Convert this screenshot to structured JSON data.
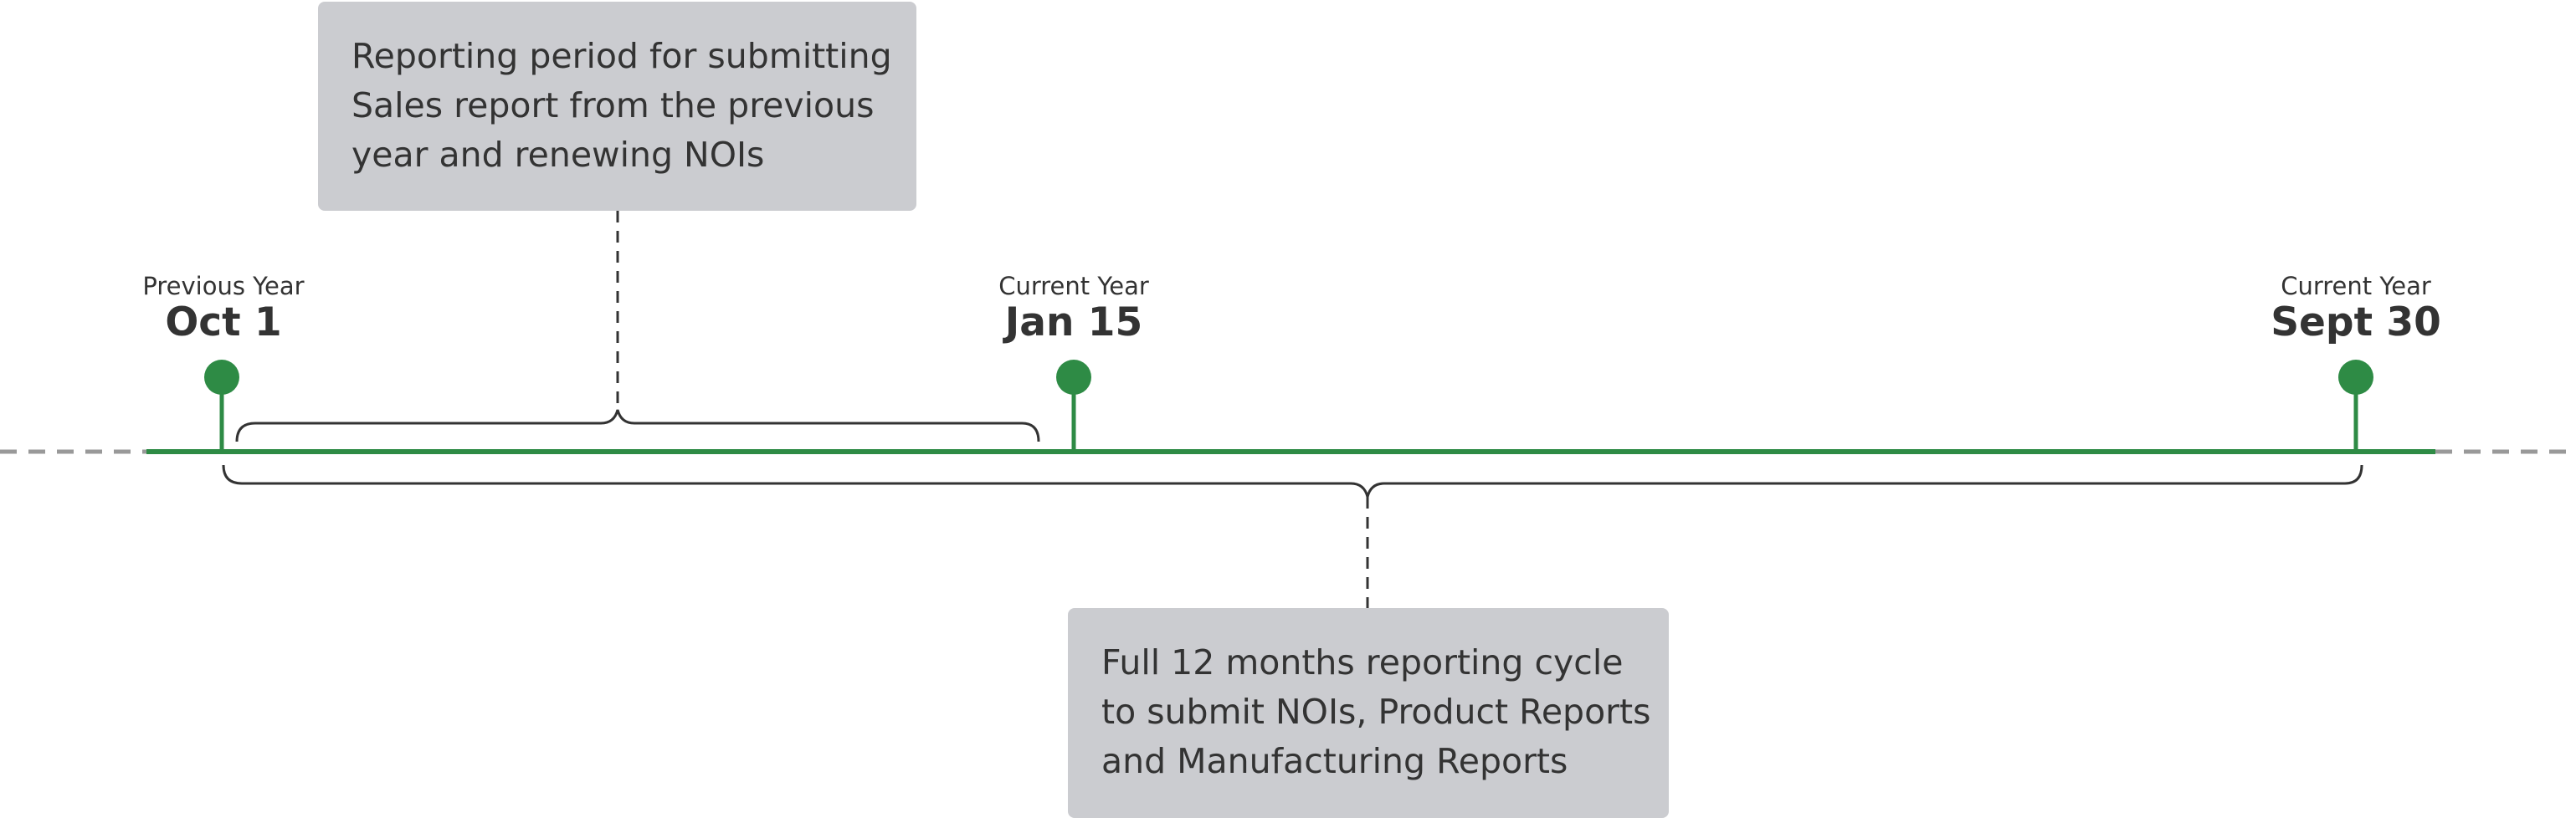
{
  "colors": {
    "timeline": "#2e8b45",
    "marker": "#2e8b45",
    "dashed_extension": "#999999",
    "brace": "#333333",
    "callout_bg": "#cbccd0",
    "text": "#333333"
  },
  "milestones": [
    {
      "caption": "Previous Year",
      "date": "Oct 1"
    },
    {
      "caption": "Current Year",
      "date": "Jan 15"
    },
    {
      "caption": "Current Year",
      "date": "Sept 30"
    }
  ],
  "callouts": {
    "top": {
      "lines": [
        "Reporting period for submitting",
        "Sales report from the previous",
        "year and renewing NOIs"
      ]
    },
    "bottom": {
      "lines": [
        "Full 12 months reporting cycle",
        "to submit NOIs, Product Reports",
        "and Manufacturing Reports"
      ]
    }
  }
}
